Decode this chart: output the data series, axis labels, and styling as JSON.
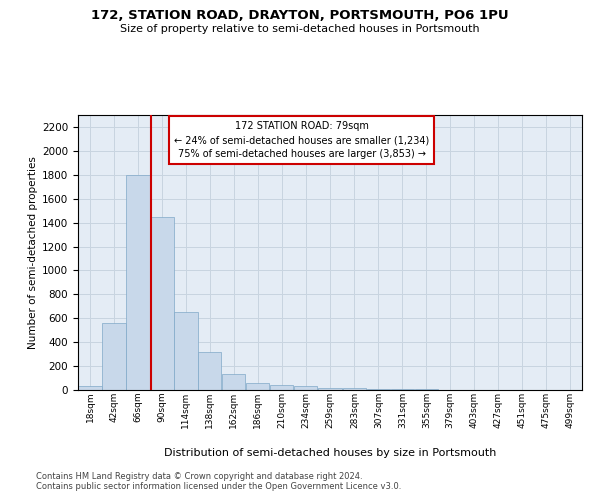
{
  "title1": "172, STATION ROAD, DRAYTON, PORTSMOUTH, PO6 1PU",
  "title2": "Size of property relative to semi-detached houses in Portsmouth",
  "xlabel": "Distribution of semi-detached houses by size in Portsmouth",
  "ylabel": "Number of semi-detached properties",
  "footnote1": "Contains HM Land Registry data © Crown copyright and database right 2024.",
  "footnote2": "Contains public sector information licensed under the Open Government Licence v3.0.",
  "annotation_title": "172 STATION ROAD: 79sqm",
  "annotation_line1": "← 24% of semi-detached houses are smaller (1,234)",
  "annotation_line2": "75% of semi-detached houses are larger (3,853) →",
  "bar_color": "#c8d8ea",
  "bar_edge_color": "#7fa8c8",
  "red_line_x": 79,
  "annotation_box_color": "#ffffff",
  "annotation_box_edge_color": "#cc0000",
  "categories": [
    "18sqm",
    "42sqm",
    "66sqm",
    "90sqm",
    "114sqm",
    "138sqm",
    "162sqm",
    "186sqm",
    "210sqm",
    "234sqm",
    "259sqm",
    "283sqm",
    "307sqm",
    "331sqm",
    "355sqm",
    "379sqm",
    "403sqm",
    "427sqm",
    "451sqm",
    "475sqm",
    "499sqm"
  ],
  "bin_edges": [
    6,
    30,
    54,
    78,
    102,
    126,
    150,
    174,
    198,
    222,
    246,
    271,
    295,
    319,
    343,
    367,
    391,
    415,
    439,
    463,
    487,
    511
  ],
  "values": [
    30,
    560,
    1800,
    1450,
    650,
    320,
    130,
    55,
    45,
    30,
    20,
    15,
    10,
    8,
    5,
    4,
    3,
    2,
    1,
    1,
    1
  ],
  "ylim": [
    0,
    2300
  ],
  "yticks": [
    0,
    200,
    400,
    600,
    800,
    1000,
    1200,
    1400,
    1600,
    1800,
    2000,
    2200
  ],
  "grid_color": "#c8d4e0",
  "background_color": "#e4ecf5"
}
